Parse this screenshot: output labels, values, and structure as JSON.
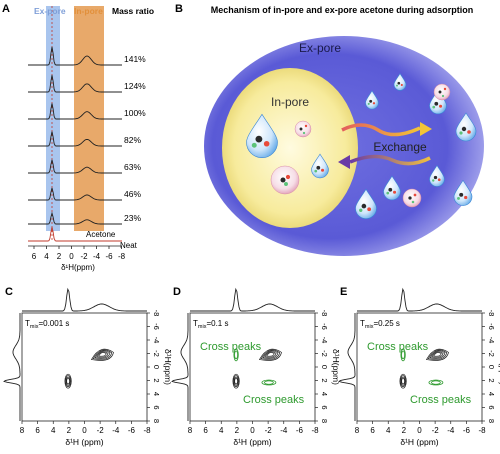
{
  "panel_labels": {
    "a": "A",
    "b": "B",
    "c": "C",
    "d": "D",
    "e": "E"
  },
  "panel_a": {
    "ex_pore_label": "Ex-pore",
    "in_pore_label": "In-pore",
    "mass_ratio_label": "Mass ratio",
    "spectra": [
      {
        "label": "141%",
        "color": "#222222"
      },
      {
        "label": "124%",
        "color": "#222222"
      },
      {
        "label": "100%",
        "color": "#222222"
      },
      {
        "label": "82%",
        "color": "#222222"
      },
      {
        "label": "63%",
        "color": "#222222"
      },
      {
        "label": "46%",
        "color": "#222222"
      },
      {
        "label": "23%",
        "color": "#222222"
      },
      {
        "label": "Acetone",
        "color": "#c0392b"
      }
    ],
    "neat_label": "Neat",
    "x_ticks": [
      "6",
      "4",
      "2",
      "0",
      "-2",
      "-4",
      "-6",
      "-8"
    ],
    "x_label": "δ¹H(ppm)",
    "ex_pore_color": "#a9c5ee",
    "in_pore_color": "#e8a96a"
  },
  "panel_b": {
    "title": "Mechanism of in-pore and ex-pore acetone during adsorption",
    "ex_pore_label": "Ex-pore",
    "in_pore_label": "In-pore",
    "exchange_label": "Exchange"
  },
  "panels_2d": [
    {
      "letter": "C",
      "tmix": "T",
      "tmix_sub": "mix",
      "tmix_value": "=0.001 s",
      "cross_peaks": []
    },
    {
      "letter": "D",
      "tmix": "T",
      "tmix_sub": "mix",
      "tmix_value": "=0.1 s",
      "cross_peaks": [
        "Cross peaks",
        "Cross peaks"
      ]
    },
    {
      "letter": "E",
      "tmix": "T",
      "tmix_sub": "mix",
      "tmix_value": "=0.25 s",
      "cross_peaks": [
        "Cross peaks",
        "Cross peaks"
      ]
    }
  ],
  "axis_2d": {
    "x_ticks": [
      "8",
      "6",
      "4",
      "2",
      "0",
      "-2",
      "-4",
      "-6",
      "-8"
    ],
    "y_ticks": [
      "-8",
      "-6",
      "-4",
      "-2",
      "0",
      "2",
      "4",
      "6",
      "8"
    ],
    "x_label": "δ¹H (ppm)",
    "y_label": "δ¹H(ppm)",
    "cross_peak_color": "#2e9a2e"
  }
}
